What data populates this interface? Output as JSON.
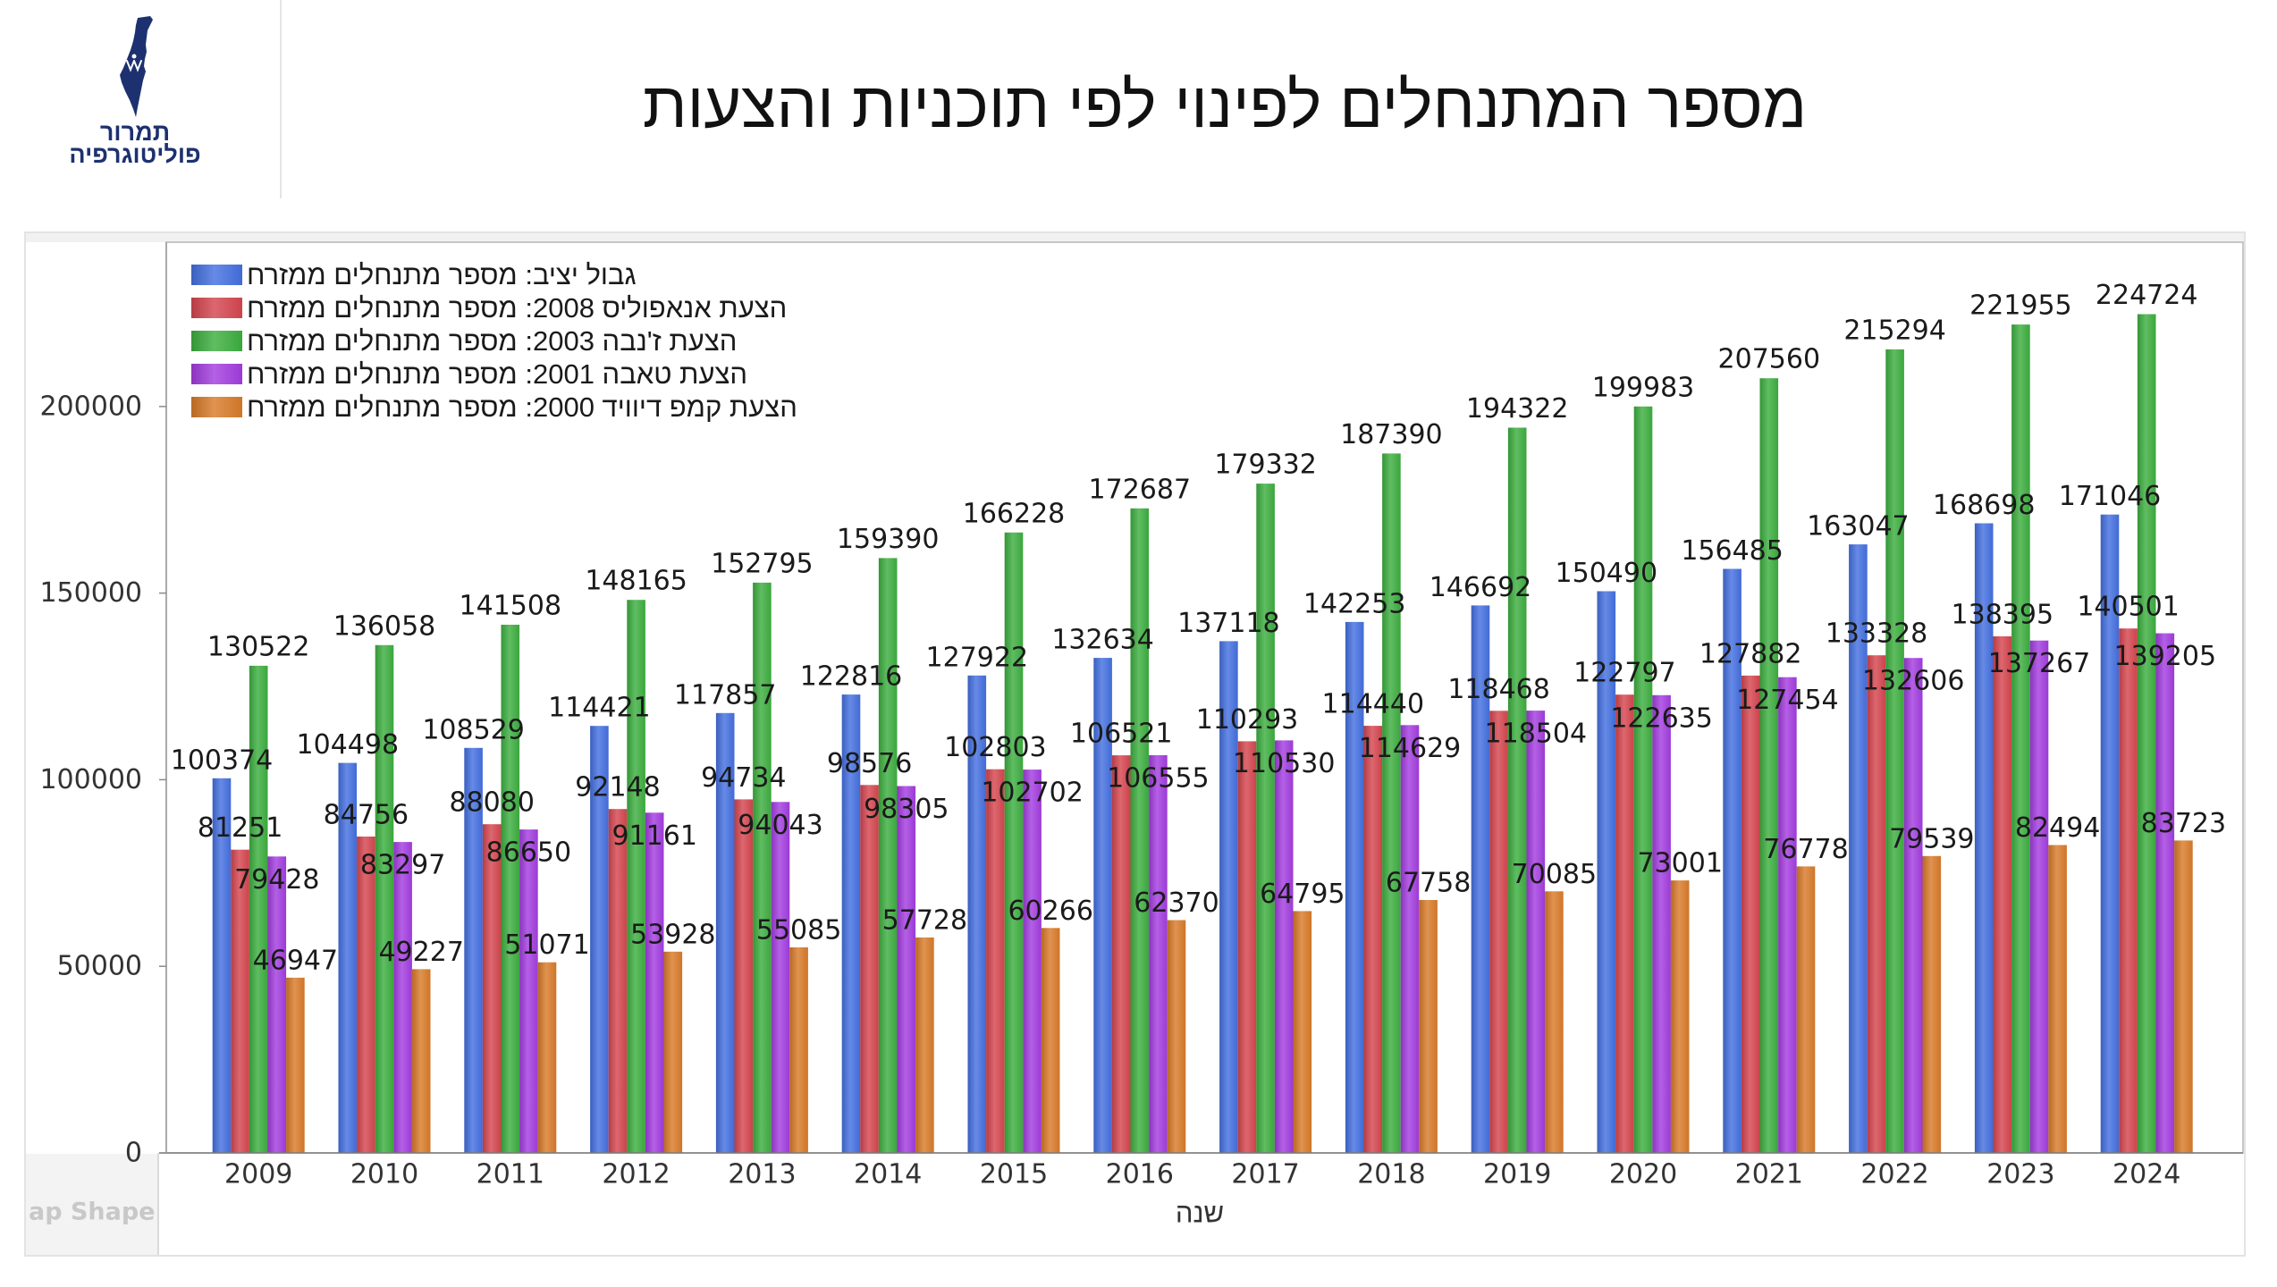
{
  "logo": {
    "icon": "israel-map-icon",
    "line1": "תמרור",
    "line2": "פוליטוגרפיה",
    "color": "#1d3170"
  },
  "panel": {
    "map_shape_label": "ap Shape"
  },
  "chart_data": {
    "type": "bar",
    "title": "מספר המתנחלים לפינוי לפי תוכניות והצעות",
    "xlabel": "שנה",
    "ylabel": "",
    "legend": "top-left",
    "grid": false,
    "ylim": [
      0,
      244000
    ],
    "yticks": [
      0,
      50000,
      100000,
      150000,
      200000
    ],
    "categories": [
      "2009",
      "2010",
      "2011",
      "2012",
      "2013",
      "2014",
      "2015",
      "2016",
      "2017",
      "2018",
      "2019",
      "2020",
      "2021",
      "2022",
      "2023",
      "2024"
    ],
    "series": [
      {
        "name": "גבול יציב: מספר מתנחלים ממזרח",
        "color": "#4470e0",
        "values": [
          100374,
          104498,
          108529,
          114421,
          117857,
          122816,
          127922,
          132634,
          137118,
          142253,
          146692,
          150490,
          156485,
          163047,
          168698,
          171046
        ]
      },
      {
        "name": "הצעת אנאפוליס 2008: מספר מתנחלים ממזרח",
        "color": "#d6464f",
        "values": [
          81251,
          84756,
          88080,
          92148,
          94734,
          98576,
          102803,
          106521,
          110293,
          114440,
          118468,
          122797,
          127882,
          133328,
          138395,
          140501
        ]
      },
      {
        "name": "הצעת ז'נבה 2003: מספר מתנחלים ממזרח",
        "color": "#3daf3f",
        "values": [
          130522,
          136058,
          141508,
          148165,
          152795,
          159390,
          166228,
          172687,
          179332,
          187390,
          194322,
          199983,
          207560,
          215294,
          221955,
          224724
        ]
      },
      {
        "name": "הצעת טאבה 2001: מספר מתנחלים ממזרח",
        "color": "#a33de0",
        "values": [
          79428,
          83297,
          86650,
          91161,
          94043,
          98305,
          102702,
          106555,
          110530,
          114629,
          118504,
          122635,
          127454,
          132606,
          137267,
          139205
        ]
      },
      {
        "name": "הצעת קמפ דיוויד 2000: מספר מתנחלים ממזרח",
        "color": "#d97b2a",
        "values": [
          46947,
          49227,
          51071,
          53928,
          55085,
          57728,
          60266,
          62370,
          64795,
          67758,
          70085,
          73001,
          76778,
          79539,
          82494,
          83723
        ]
      }
    ]
  }
}
